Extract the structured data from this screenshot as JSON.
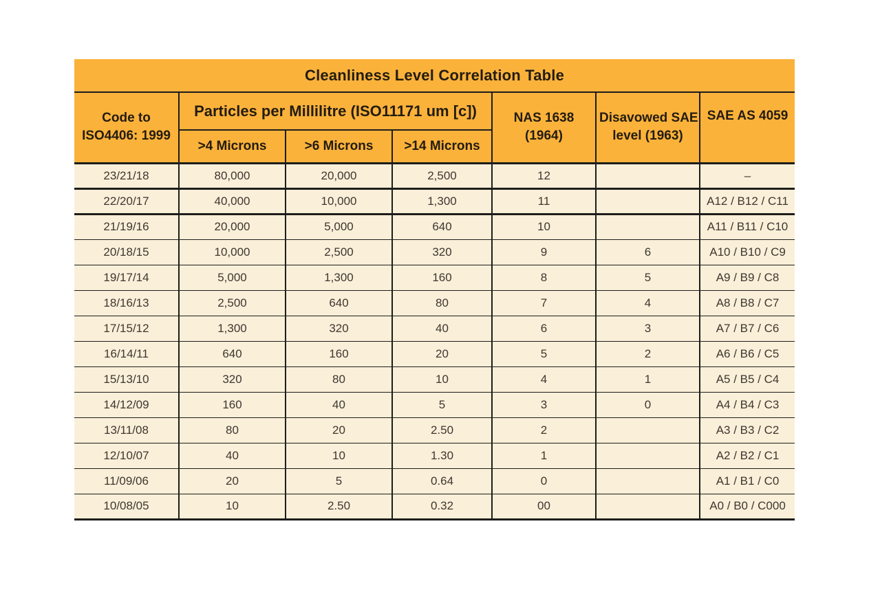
{
  "table": {
    "title": "Cleanliness Level Correlation Table",
    "colors": {
      "header_bg": "#FBB23B",
      "body_bg": "#FAEFD8",
      "border": "#1D1D1B",
      "header_text": "#231C10",
      "body_text": "#3E3731"
    },
    "header": {
      "code": {
        "line1": "Code to",
        "line2": "ISO4406: 1999"
      },
      "particles_group": "Particles per Millilitre (ISO11171 um [c])",
      "sub": [
        ">4 Microns",
        ">6 Microns",
        ">14 Microns"
      ],
      "nas": {
        "line1": "NAS 1638",
        "line2": "(1964)"
      },
      "disavowed": {
        "line1": "Disavowed SAE",
        "line2": "level (1963)"
      },
      "sae": "SAE AS 4059"
    },
    "rows": [
      [
        "23/21/18",
        "80,000",
        "20,000",
        "2,500",
        "12",
        "",
        "–"
      ],
      [
        "22/20/17",
        "40,000",
        "10,000",
        "1,300",
        "11",
        "",
        "A12 / B12 / C11"
      ],
      [
        "21/19/16",
        "20,000",
        "5,000",
        "640",
        "10",
        "",
        "A11 / B11 / C10"
      ],
      [
        "20/18/15",
        "10,000",
        "2,500",
        "320",
        "9",
        "6",
        "A10 / B10 / C9"
      ],
      [
        "19/17/14",
        "5,000",
        "1,300",
        "160",
        "8",
        "5",
        "A9 / B9 / C8"
      ],
      [
        "18/16/13",
        "2,500",
        "640",
        "80",
        "7",
        "4",
        "A8 / B8 / C7"
      ],
      [
        "17/15/12",
        "1,300",
        "320",
        "40",
        "6",
        "3",
        "A7 / B7 / C6"
      ],
      [
        "16/14/11",
        "640",
        "160",
        "20",
        "5",
        "2",
        "A6 / B6 / C5"
      ],
      [
        "15/13/10",
        "320",
        "80",
        "10",
        "4",
        "1",
        "A5 / B5 / C4"
      ],
      [
        "14/12/09",
        "160",
        "40",
        "5",
        "3",
        "0",
        "A4 / B4 / C3"
      ],
      [
        "13/11/08",
        "80",
        "20",
        "2.50",
        "2",
        "",
        "A3 / B3 / C2"
      ],
      [
        "12/10/07",
        "40",
        "10",
        "1.30",
        "1",
        "",
        "A2 / B2 / C1"
      ],
      [
        "11/09/06",
        "20",
        "5",
        "0.64",
        "0",
        "",
        "A1 / B1 / C0"
      ],
      [
        "10/08/05",
        "10",
        "2.50",
        "0.32",
        "00",
        "",
        "A0 / B0 / C000"
      ]
    ]
  }
}
